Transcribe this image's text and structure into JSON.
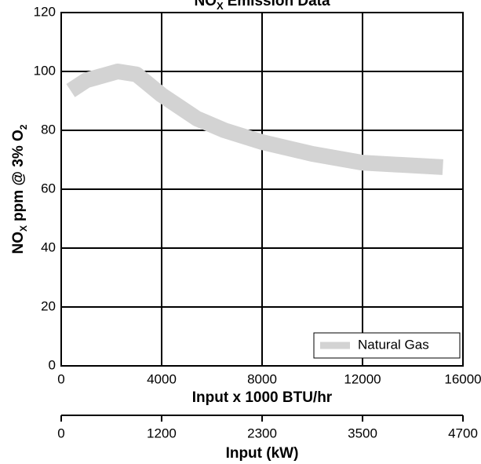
{
  "chart_data": {
    "type": "line",
    "title": [
      "NO",
      "X",
      "Emission Data"
    ],
    "xlabel": "Input x 1000 BTU/hr",
    "ylabel": [
      "NO",
      "X",
      "ppm @ 3% O",
      "2"
    ],
    "x2label": "Input (kW)",
    "xlim": [
      0,
      16000
    ],
    "xticks": [
      0,
      4000,
      8000,
      12000,
      16000
    ],
    "ylim": [
      0,
      120
    ],
    "yticks": [
      0,
      20,
      40,
      60,
      80,
      100,
      120
    ],
    "x2lim": [
      0,
      4689
    ],
    "x2ticks": [
      0,
      {
        "value": 1172,
        "label": "1200"
      },
      {
        "value": 2345,
        "label": "2300"
      },
      {
        "value": 3517,
        "label": "3500"
      },
      {
        "value": 4689,
        "label": "4700"
      }
    ],
    "grid": true,
    "legend": "lower right",
    "x": [
      375,
      1000,
      2250,
      3000,
      4000,
      5400,
      6500,
      8000,
      10000,
      12000,
      15200
    ],
    "series": [
      {
        "name": "Natural Gas",
        "color": "#d3d3d3",
        "values": [
          93.5,
          97,
          100,
          99,
          92,
          84,
          80,
          76,
          72,
          69,
          67.5
        ]
      }
    ]
  }
}
